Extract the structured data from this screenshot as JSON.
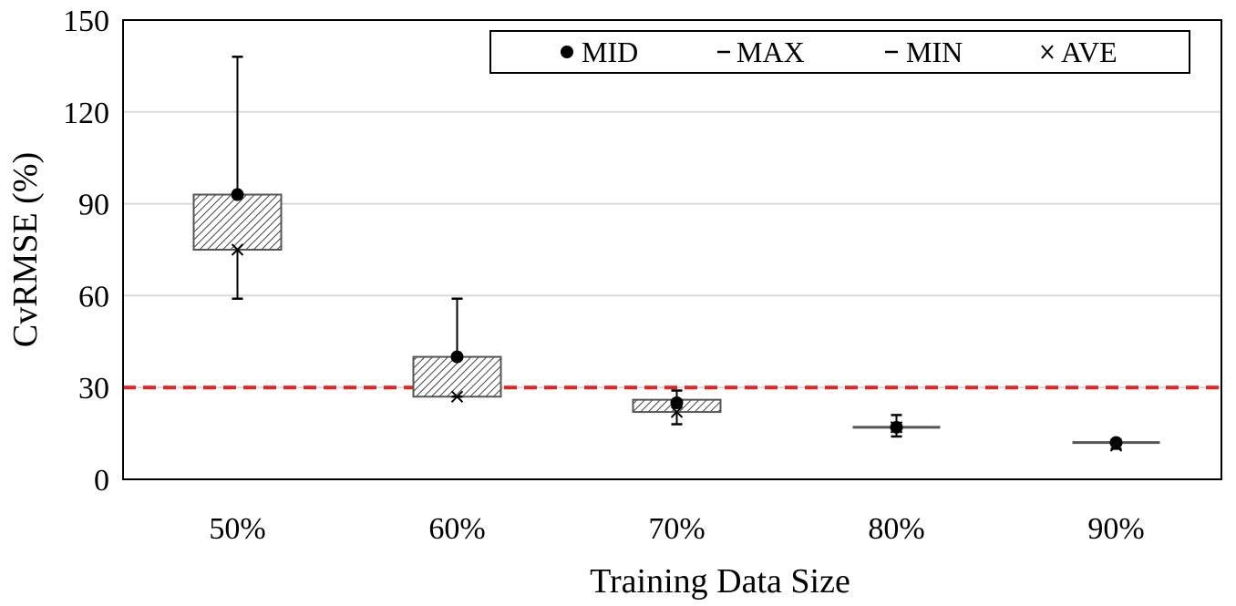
{
  "chart_data": {
    "type": "box",
    "title": "",
    "xlabel": "Training Data Size",
    "ylabel": "CvRMSE (%)",
    "ylim": [
      0,
      150
    ],
    "yticks": [
      0,
      30,
      60,
      90,
      120,
      150
    ],
    "grid": true,
    "legend_position": "top-right",
    "legend": [
      "MID",
      "MAX",
      "MIN",
      "AVE"
    ],
    "categories": [
      "50%",
      "60%",
      "70%",
      "80%",
      "90%"
    ],
    "box_low": [
      75,
      27,
      22,
      17,
      12
    ],
    "box_high": [
      93,
      40,
      26,
      17,
      12
    ],
    "mid": [
      93,
      40,
      25,
      17,
      12
    ],
    "max": [
      138,
      59,
      29,
      21,
      13
    ],
    "min": [
      59,
      27,
      18,
      14,
      10
    ],
    "ave": [
      75,
      27,
      22,
      17,
      11
    ],
    "threshold": 30,
    "colors": {
      "threshold": "#e8211f",
      "box_stroke": "#555555",
      "grid": "#d9d9d9",
      "axis": "#000000"
    }
  }
}
